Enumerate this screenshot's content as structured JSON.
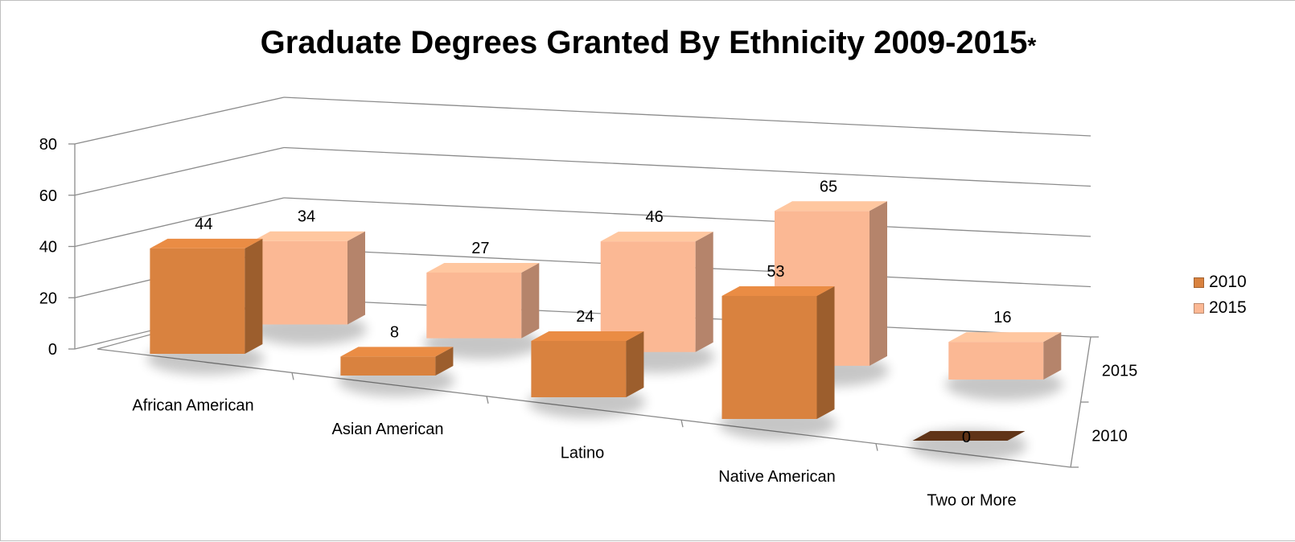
{
  "chart_data": {
    "type": "bar",
    "title": "Graduate Degrees Granted By Ethnicity 2009-2015",
    "title_suffix": "*",
    "categories": [
      "African American",
      "Asian American",
      "Latino",
      "Native American",
      "Two or More"
    ],
    "series": [
      {
        "name": "2010",
        "values": [
          44,
          8,
          24,
          53,
          0
        ],
        "color": "#d9823f",
        "zero_color": "#6b3a1a"
      },
      {
        "name": "2015",
        "values": [
          34,
          27,
          46,
          65,
          16
        ],
        "color": "#fbb894"
      }
    ],
    "ylim": [
      0,
      80
    ],
    "yticks": [
      0,
      20,
      40,
      60,
      80
    ],
    "depth_labels": [
      "2015",
      "2010"
    ],
    "grid": true,
    "legend_position": "right",
    "style": "3d-column"
  }
}
